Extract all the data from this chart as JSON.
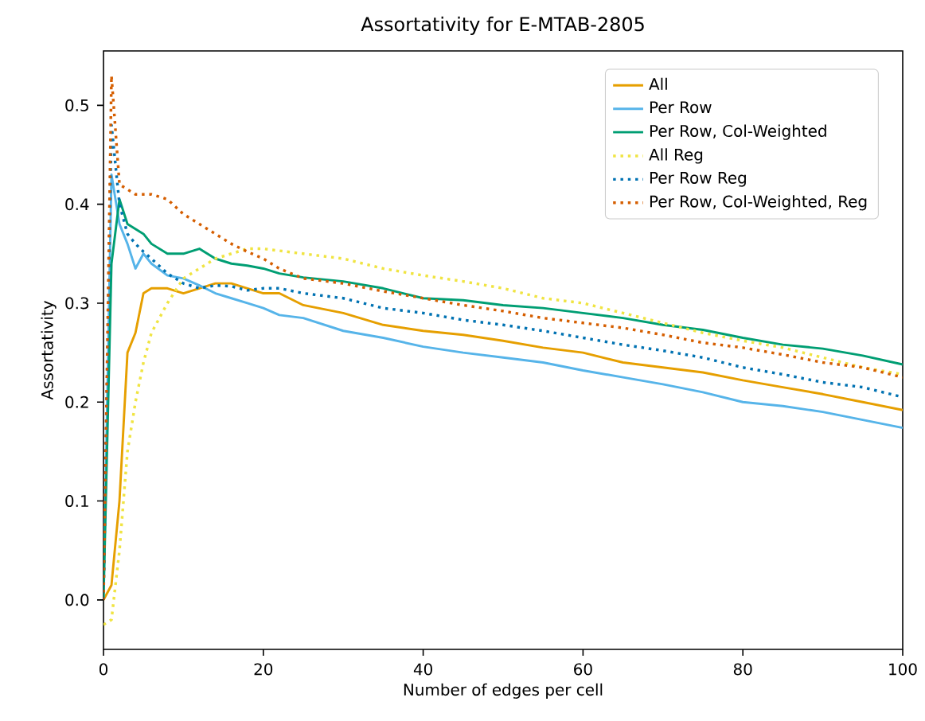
{
  "chart_data": {
    "type": "line",
    "title": "Assortativity for E-MTAB-2805",
    "xlabel": "Number of edges per cell",
    "ylabel": "Assortativity",
    "x": [
      0,
      1,
      2,
      3,
      4,
      5,
      6,
      8,
      10,
      12,
      14,
      16,
      18,
      20,
      22,
      25,
      30,
      35,
      40,
      45,
      50,
      55,
      60,
      65,
      70,
      75,
      80,
      85,
      90,
      95,
      100
    ],
    "series": [
      {
        "name": "All",
        "color": "#e69f00",
        "line_style": "solid",
        "values": [
          0,
          0.015,
          0.1,
          0.25,
          0.27,
          0.31,
          0.315,
          0.315,
          0.31,
          0.315,
          0.32,
          0.32,
          0.315,
          0.31,
          0.31,
          0.298,
          0.29,
          0.278,
          0.272,
          0.268,
          0.262,
          0.255,
          0.25,
          0.24,
          0.235,
          0.23,
          0.222,
          0.215,
          0.208,
          0.2,
          0.192
        ]
      },
      {
        "name": "Per Row",
        "color": "#56b4e9",
        "line_style": "solid",
        "values": [
          0,
          0.43,
          0.38,
          0.36,
          0.335,
          0.35,
          0.34,
          0.328,
          0.325,
          0.318,
          0.31,
          0.305,
          0.3,
          0.295,
          0.288,
          0.285,
          0.272,
          0.265,
          0.256,
          0.25,
          0.245,
          0.24,
          0.232,
          0.225,
          0.218,
          0.21,
          0.2,
          0.196,
          0.19,
          0.182,
          0.174
        ]
      },
      {
        "name": "Per Row, Col-Weighted",
        "color": "#009e73",
        "line_style": "solid",
        "values": [
          0,
          0.34,
          0.405,
          0.38,
          0.375,
          0.37,
          0.36,
          0.35,
          0.35,
          0.355,
          0.345,
          0.34,
          0.338,
          0.335,
          0.33,
          0.326,
          0.322,
          0.315,
          0.305,
          0.303,
          0.298,
          0.295,
          0.29,
          0.285,
          0.278,
          0.273,
          0.265,
          0.258,
          0.254,
          0.247,
          0.238
        ]
      },
      {
        "name": "All Reg",
        "color": "#f0e442",
        "line_style": "dotted",
        "values": [
          -0.025,
          -0.02,
          0.05,
          0.15,
          0.2,
          0.24,
          0.27,
          0.3,
          0.325,
          0.335,
          0.345,
          0.35,
          0.355,
          0.355,
          0.353,
          0.35,
          0.345,
          0.335,
          0.328,
          0.322,
          0.315,
          0.305,
          0.3,
          0.29,
          0.28,
          0.27,
          0.262,
          0.255,
          0.245,
          0.235,
          0.228
        ]
      },
      {
        "name": "Per Row Reg",
        "color": "#0072b2",
        "line_style": "dotted",
        "values": [
          0,
          0.48,
          0.4,
          0.37,
          0.36,
          0.352,
          0.345,
          0.33,
          0.32,
          0.315,
          0.318,
          0.317,
          0.313,
          0.315,
          0.315,
          0.31,
          0.305,
          0.295,
          0.29,
          0.283,
          0.278,
          0.272,
          0.265,
          0.258,
          0.252,
          0.245,
          0.235,
          0.228,
          0.22,
          0.215,
          0.205
        ]
      },
      {
        "name": "Per Row, Col-Weighted, Reg",
        "color": "#d55e00",
        "line_style": "dotted",
        "values": [
          0,
          0.53,
          0.42,
          0.415,
          0.41,
          0.41,
          0.41,
          0.405,
          0.39,
          0.38,
          0.37,
          0.36,
          0.352,
          0.345,
          0.335,
          0.325,
          0.32,
          0.312,
          0.305,
          0.298,
          0.292,
          0.285,
          0.28,
          0.275,
          0.268,
          0.26,
          0.255,
          0.248,
          0.24,
          0.235,
          0.225
        ]
      }
    ],
    "xlim": [
      0,
      100
    ],
    "ylim": [
      -0.05,
      0.555
    ],
    "xticks": [
      0,
      20,
      40,
      60,
      80,
      100
    ],
    "yticks": [
      {
        "value": 0,
        "label": "0.0"
      },
      {
        "value": 0.1,
        "label": "0.1"
      },
      {
        "value": 0.2,
        "label": "0.2"
      },
      {
        "value": 0.3,
        "label": "0.3"
      },
      {
        "value": 0.4,
        "label": "0.4"
      },
      {
        "value": 0.5,
        "label": "0.5"
      }
    ],
    "grid": false,
    "legend": "top right",
    "marker": "none"
  }
}
